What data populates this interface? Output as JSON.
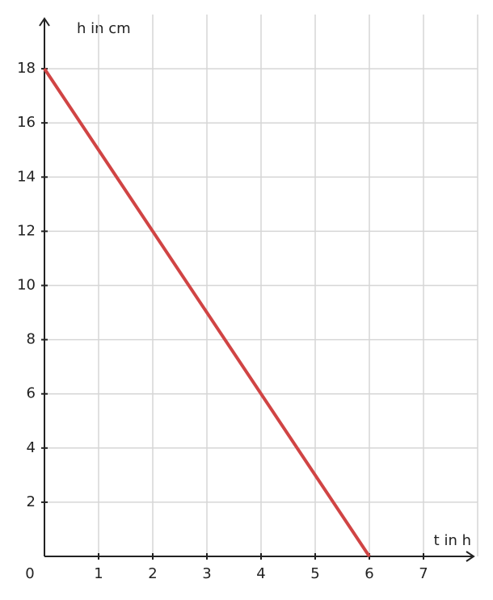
{
  "chart_data": {
    "type": "line",
    "x_label": "t in h",
    "y_label": "h in cm",
    "x": [
      0,
      6
    ],
    "series": [
      {
        "name": null,
        "color": "#d04444",
        "values": [
          18,
          0
        ]
      }
    ],
    "xlim": [
      0,
      8
    ],
    "ylim": [
      0,
      20
    ],
    "xticks": [
      0,
      1,
      2,
      3,
      4,
      5,
      6,
      7
    ],
    "yticks": [
      2,
      4,
      6,
      8,
      10,
      12,
      14,
      16,
      18
    ],
    "grid": true
  }
}
